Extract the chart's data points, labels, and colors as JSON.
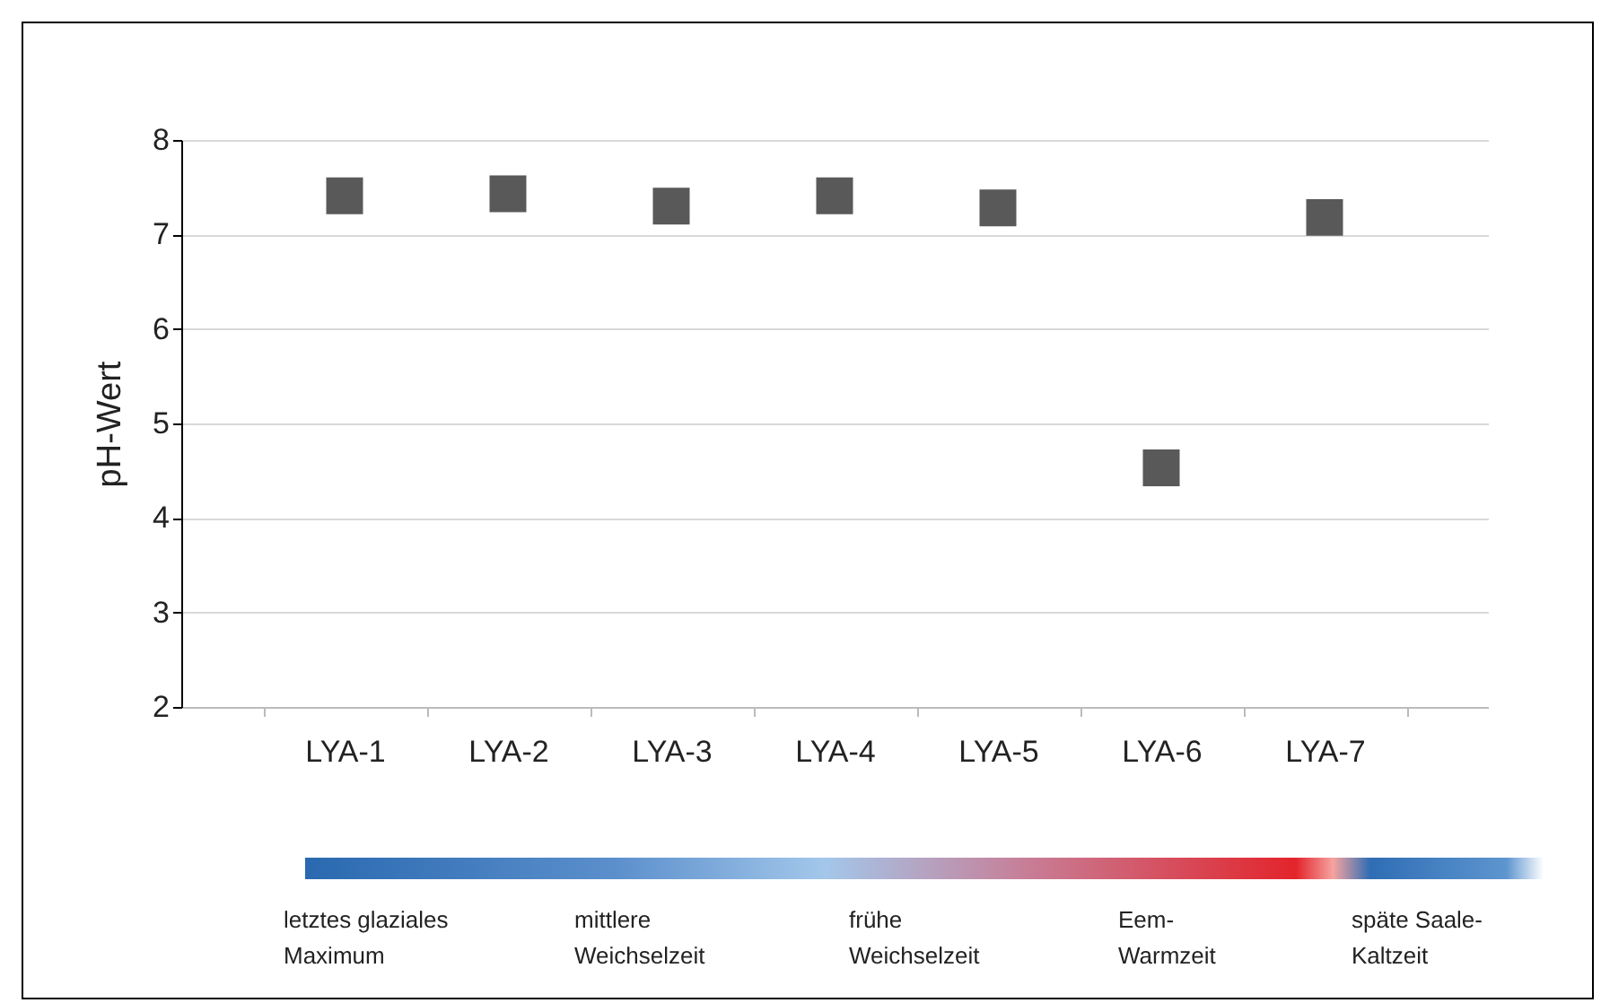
{
  "chart_data": {
    "type": "scatter",
    "ylabel": "pH-Wert",
    "categories": [
      "LYA-1",
      "LYA-2",
      "LYA-3",
      "LYA-4",
      "LYA-5",
      "LYA-6",
      "LYA-7"
    ],
    "series": [
      {
        "color": "#595959",
        "values": [
          7.41,
          7.43,
          7.3,
          7.41,
          7.28,
          4.53,
          7.18
        ]
      }
    ],
    "ylim": [
      2,
      8
    ],
    "yticks": [
      2,
      3,
      4,
      5,
      6,
      7,
      8
    ],
    "grid": "y",
    "marker": "square",
    "legend": false,
    "annotations": [
      "letztes glaziales\nMaximum",
      "mittlere\nWeichselzeit",
      "frühe\nWeichselzeit",
      "Eem-\nWarmzeit",
      "späte Saale-\nKaltzeit"
    ]
  }
}
